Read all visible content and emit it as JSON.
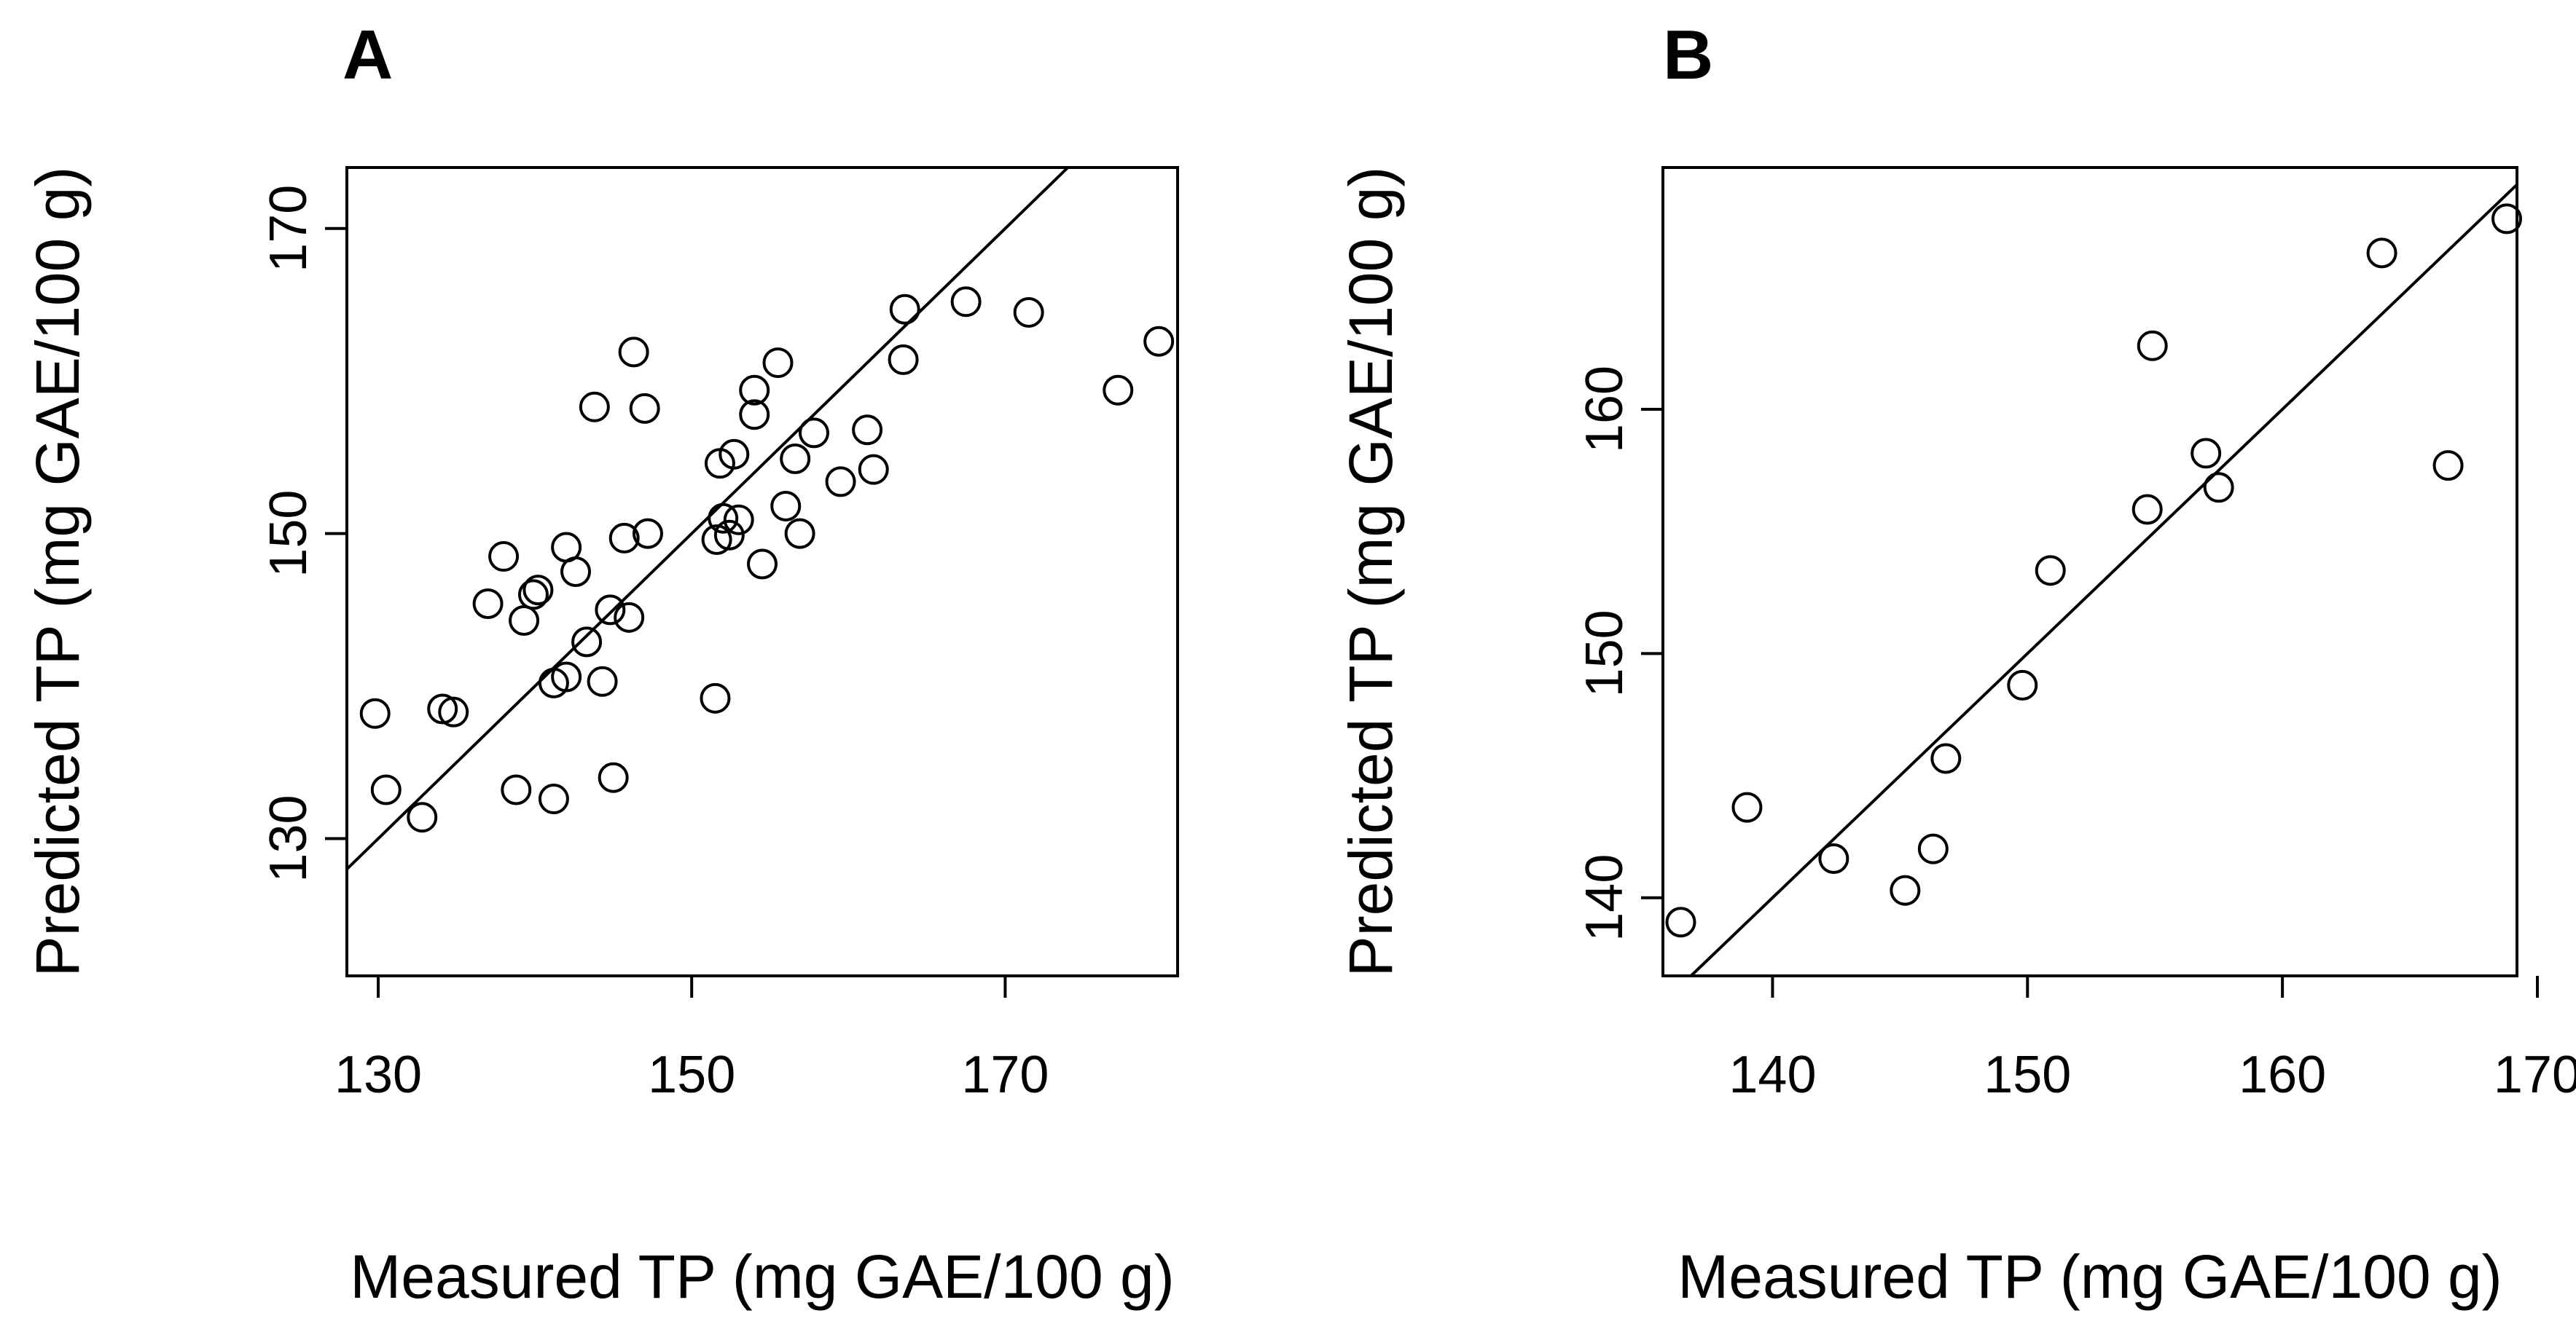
{
  "chart_data": [
    {
      "type": "scatter",
      "panel_label": "A",
      "xlabel": "Measured TP (mg GAE/100 g)",
      "ylabel": "Predicted TP (mg GAE/100 g)",
      "xlim": [
        128,
        181
      ],
      "ylim": [
        121,
        174
      ],
      "xticks": [
        "130",
        "150",
        "170"
      ],
      "yticks": [
        "130",
        "150",
        "170"
      ],
      "reference_line": "y = x",
      "points": [
        [
          129.8,
          138.2
        ],
        [
          130.5,
          133.2
        ],
        [
          132.8,
          131.4
        ],
        [
          134.1,
          138.5
        ],
        [
          134.8,
          138.3
        ],
        [
          137.0,
          145.4
        ],
        [
          138.0,
          148.5
        ],
        [
          138.8,
          133.2
        ],
        [
          139.3,
          144.3
        ],
        [
          139.9,
          146.0
        ],
        [
          140.2,
          146.3
        ],
        [
          141.2,
          140.2
        ],
        [
          141.2,
          132.6
        ],
        [
          142.0,
          149.1
        ],
        [
          142.0,
          140.6
        ],
        [
          142.6,
          147.5
        ],
        [
          143.3,
          142.9
        ],
        [
          143.8,
          158.3
        ],
        [
          144.3,
          140.3
        ],
        [
          144.8,
          145.0
        ],
        [
          145.0,
          134.0
        ],
        [
          145.7,
          149.7
        ],
        [
          146.0,
          144.5
        ],
        [
          146.3,
          161.9
        ],
        [
          147.0,
          158.2
        ],
        [
          147.2,
          150.0
        ],
        [
          151.5,
          139.2
        ],
        [
          151.6,
          149.6
        ],
        [
          151.8,
          154.6
        ],
        [
          152.0,
          151.0
        ],
        [
          152.4,
          149.9
        ],
        [
          152.7,
          155.2
        ],
        [
          153.0,
          150.9
        ],
        [
          154.0,
          157.8
        ],
        [
          154.0,
          159.4
        ],
        [
          154.5,
          148.0
        ],
        [
          155.5,
          161.2
        ],
        [
          156.0,
          151.8
        ],
        [
          156.6,
          154.9
        ],
        [
          156.9,
          150.0
        ],
        [
          157.8,
          156.6
        ],
        [
          159.5,
          153.4
        ],
        [
          161.2,
          156.8
        ],
        [
          161.6,
          154.2
        ],
        [
          163.5,
          161.4
        ],
        [
          163.6,
          164.7
        ],
        [
          167.5,
          165.2
        ],
        [
          171.5,
          164.5
        ],
        [
          177.2,
          159.4
        ],
        [
          179.8,
          162.6
        ]
      ]
    },
    {
      "type": "scatter",
      "panel_label": "B",
      "xlabel": "Measured TP (mg GAE/100 g)",
      "ylabel": "Predicted TP (mg GAE/100 g)",
      "xlim": [
        135.7,
        169.2
      ],
      "ylim": [
        136.8,
        169.9
      ],
      "xticks": [
        "140",
        "150",
        "160",
        "170"
      ],
      "yticks": [
        "140",
        "150",
        "160"
      ],
      "reference_line": "y = x",
      "points": [
        [
          136.4,
          139.0
        ],
        [
          139.0,
          143.7
        ],
        [
          142.4,
          141.6
        ],
        [
          145.2,
          140.3
        ],
        [
          146.3,
          142.0
        ],
        [
          146.8,
          145.7
        ],
        [
          149.8,
          148.7
        ],
        [
          150.9,
          153.4
        ],
        [
          154.7,
          155.9
        ],
        [
          154.9,
          162.6
        ],
        [
          157.0,
          158.2
        ],
        [
          157.5,
          156.8
        ],
        [
          163.9,
          166.4
        ],
        [
          166.5,
          157.7
        ],
        [
          168.8,
          167.8
        ]
      ]
    }
  ]
}
